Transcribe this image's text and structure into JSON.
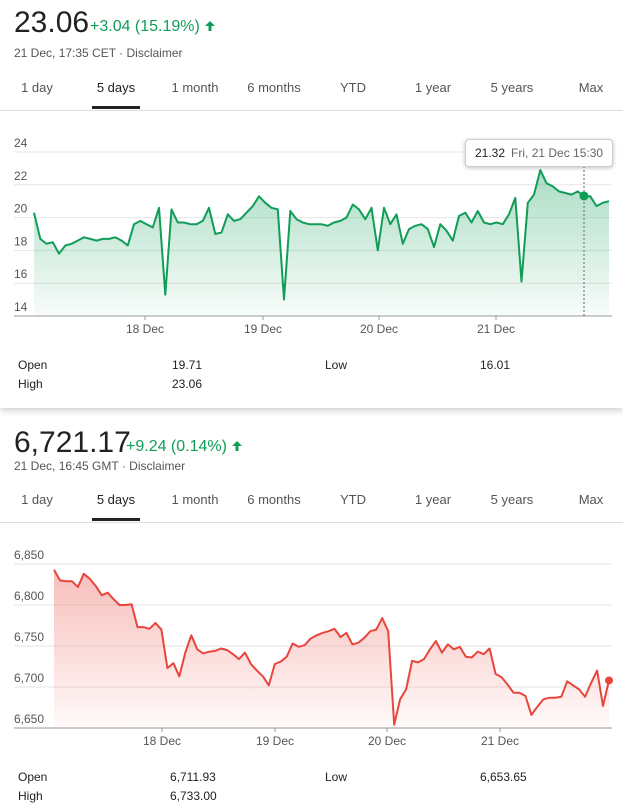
{
  "panels": [
    {
      "price": "23.06",
      "change": "+3.04 (15.19%)",
      "timestamp": "21 Dec, 17:35 CET · Disclaimer",
      "tabs": [
        "1 day",
        "5 days",
        "1 month",
        "6 months",
        "YTD",
        "1 year",
        "5 years",
        "Max"
      ],
      "active_tab": "5 days",
      "tooltip": {
        "value": "21.32",
        "date": "Fri, 21 Dec 15:30"
      },
      "stats": {
        "open_label": "Open",
        "open": "19.71",
        "high_label": "High",
        "high": "23.06",
        "low_label": "Low",
        "low": "16.01"
      },
      "color": "#0f9d58"
    },
    {
      "price": "6,721.17",
      "change": "+9.24 (0.14%)",
      "timestamp": "21 Dec, 16:45 GMT · Disclaimer",
      "tabs": [
        "1 day",
        "5 days",
        "1 month",
        "6 months",
        "YTD",
        "1 year",
        "5 years",
        "Max"
      ],
      "active_tab": "5 days",
      "stats": {
        "open_label": "Open",
        "open": "6,711.93",
        "high_label": "High",
        "high": "6,733.00",
        "low_label": "Low",
        "low": "6,653.65"
      },
      "color": "#e8453c"
    }
  ],
  "chart_data": [
    {
      "type": "line",
      "ylim": [
        14,
        24
      ],
      "yticks": [
        "24",
        "22",
        "20",
        "18",
        "16",
        "14"
      ],
      "xticks": [
        "18 Dec",
        "19 Dec",
        "20 Dec",
        "21 Dec"
      ],
      "grid": true,
      "series": [
        {
          "values": [
            20.3,
            18.7,
            18.4,
            18.5,
            17.8,
            18.3,
            18.4,
            18.6,
            18.8,
            18.7,
            18.6,
            18.7,
            18.7,
            18.8,
            18.6,
            18.3,
            19.6,
            19.8,
            19.6,
            19.4,
            20.6,
            15.3,
            20.5,
            19.7,
            19.7,
            19.6,
            19.6,
            19.8,
            20.6,
            19.0,
            19.1,
            20.2,
            19.8,
            19.9,
            20.3,
            20.7,
            21.3,
            20.9,
            20.6,
            20.5,
            15.0,
            20.4,
            19.9,
            19.7,
            19.6,
            19.6,
            19.6,
            19.5,
            19.7,
            19.8,
            20.0,
            20.8,
            20.5,
            19.9,
            20.6,
            18.0,
            20.6,
            19.6,
            20.2,
            18.4,
            19.3,
            19.5,
            19.6,
            19.3,
            18.2,
            19.6,
            19.2,
            18.6,
            20.1,
            20.3,
            19.7,
            20.4,
            19.7,
            19.6,
            19.7,
            19.6,
            20.2,
            21.2,
            16.1,
            20.9,
            21.4,
            22.9,
            22.1,
            21.9,
            21.6,
            21.5,
            21.4,
            21.6,
            21.3,
            21.3,
            20.7,
            20.9,
            21.0
          ]
        }
      ],
      "highlight": {
        "value": 21.32,
        "label": "21.32"
      }
    },
    {
      "type": "line",
      "ylim": [
        6650,
        6850
      ],
      "yticks": [
        "6,850",
        "6,800",
        "6,750",
        "6,700",
        "6,650"
      ],
      "xticks": [
        "18 Dec",
        "19 Dec",
        "20 Dec",
        "21 Dec"
      ],
      "grid": true,
      "series": [
        {
          "values": [
            6843,
            6830,
            6829,
            6829,
            6822,
            6838,
            6832,
            6823,
            6812,
            6815,
            6807,
            6800,
            6800,
            6801,
            6773,
            6773,
            6771,
            6778,
            6770,
            6723,
            6729,
            6713,
            6742,
            6763,
            6746,
            6741,
            6743,
            6744,
            6747,
            6745,
            6740,
            6734,
            6742,
            6728,
            6720,
            6713,
            6702,
            6728,
            6731,
            6737,
            6753,
            6749,
            6751,
            6759,
            6763,
            6766,
            6768,
            6771,
            6761,
            6766,
            6752,
            6754,
            6760,
            6768,
            6770,
            6784,
            6768,
            6654,
            6685,
            6697,
            6732,
            6730,
            6734,
            6746,
            6756,
            6742,
            6752,
            6746,
            6749,
            6737,
            6736,
            6743,
            6740,
            6747,
            6716,
            6712,
            6703,
            6693,
            6693,
            6689,
            6666,
            6676,
            6685,
            6687,
            6687,
            6688,
            6707,
            6702,
            6697,
            6688,
            6705,
            6720,
            6677,
            6708
          ]
        }
      ],
      "endpoint": {
        "value": 6708
      }
    }
  ]
}
